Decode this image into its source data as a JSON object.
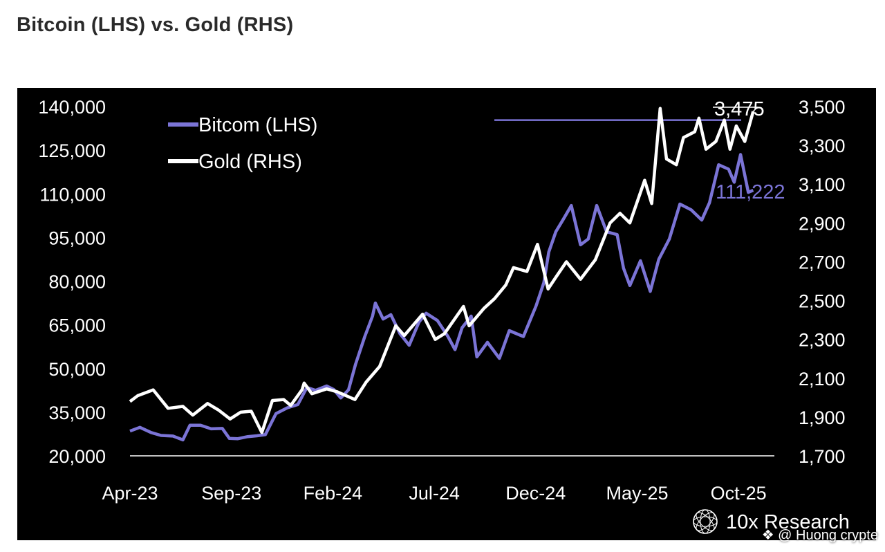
{
  "header": {
    "title": "Bitcoin (LHS) vs. Gold (RHS)"
  },
  "chart_data": {
    "type": "line",
    "title": "Bitcoin (LHS) vs. Gold (RHS)",
    "x_ticks": [
      "Apr-23",
      "Sep-23",
      "Feb-24",
      "Jul-24",
      "Dec-24",
      "May-25",
      "Oct-25"
    ],
    "y_left": {
      "ticks": [
        "140,000",
        "125,000",
        "110,000",
        "95,000",
        "80,000",
        "65,000",
        "50,000",
        "35,000",
        "20,000"
      ],
      "range": [
        20000,
        140000
      ]
    },
    "y_right": {
      "ticks": [
        "3,500",
        "3,300",
        "3,100",
        "2,900",
        "2,700",
        "2,500",
        "2,300",
        "2,100",
        "1,900",
        "1,700"
      ],
      "range": [
        1700,
        3500
      ]
    },
    "legend": {
      "position": "top-left"
    },
    "grid": false,
    "series": [
      {
        "name": "Bitcom (LHS)",
        "axis": "left",
        "color": "#7b74d6",
        "points": [
          [
            "2023-04-01",
            28500
          ],
          [
            "2023-04-15",
            29800
          ],
          [
            "2023-05-01",
            28000
          ],
          [
            "2023-05-15",
            27000
          ],
          [
            "2023-06-01",
            26800
          ],
          [
            "2023-06-15",
            25500
          ],
          [
            "2023-06-25",
            30500
          ],
          [
            "2023-07-10",
            30500
          ],
          [
            "2023-07-25",
            29300
          ],
          [
            "2023-08-10",
            29400
          ],
          [
            "2023-08-20",
            26000
          ],
          [
            "2023-09-01",
            25900
          ],
          [
            "2023-09-15",
            26600
          ],
          [
            "2023-09-28",
            26900
          ],
          [
            "2023-10-10",
            27300
          ],
          [
            "2023-10-25",
            34500
          ],
          [
            "2023-11-10",
            36500
          ],
          [
            "2023-11-25",
            37600
          ],
          [
            "2023-12-08",
            43500
          ],
          [
            "2023-12-20",
            42500
          ],
          [
            "2024-01-05",
            44000
          ],
          [
            "2024-01-15",
            42800
          ],
          [
            "2024-01-25",
            39900
          ],
          [
            "2024-02-05",
            42700
          ],
          [
            "2024-02-15",
            51500
          ],
          [
            "2024-02-28",
            61000
          ],
          [
            "2024-03-10",
            68000
          ],
          [
            "2024-03-14",
            72500
          ],
          [
            "2024-03-25",
            67000
          ],
          [
            "2024-04-05",
            68500
          ],
          [
            "2024-04-18",
            62000
          ],
          [
            "2024-05-01",
            58000
          ],
          [
            "2024-05-15",
            66000
          ],
          [
            "2024-05-25",
            69000
          ],
          [
            "2024-06-10",
            66500
          ],
          [
            "2024-06-25",
            61000
          ],
          [
            "2024-07-05",
            56500
          ],
          [
            "2024-07-15",
            64000
          ],
          [
            "2024-07-28",
            68000
          ],
          [
            "2024-08-05",
            54000
          ],
          [
            "2024-08-20",
            59000
          ],
          [
            "2024-09-06",
            53500
          ],
          [
            "2024-09-20",
            63000
          ],
          [
            "2024-10-10",
            61000
          ],
          [
            "2024-10-28",
            71500
          ],
          [
            "2024-11-08",
            79500
          ],
          [
            "2024-11-15",
            90000
          ],
          [
            "2024-11-25",
            97000
          ],
          [
            "2024-12-05",
            101000
          ],
          [
            "2024-12-17",
            106000
          ],
          [
            "2024-12-30",
            92500
          ],
          [
            "2025-01-10",
            94500
          ],
          [
            "2025-01-22",
            106000
          ],
          [
            "2025-02-05",
            97000
          ],
          [
            "2025-02-20",
            96000
          ],
          [
            "2025-03-01",
            84500
          ],
          [
            "2025-03-10",
            78500
          ],
          [
            "2025-03-25",
            87000
          ],
          [
            "2025-04-08",
            76500
          ],
          [
            "2025-04-20",
            87500
          ],
          [
            "2025-05-05",
            94500
          ],
          [
            "2025-05-20",
            106500
          ],
          [
            "2025-06-05",
            104500
          ],
          [
            "2025-06-20",
            101000
          ],
          [
            "2025-07-01",
            107000
          ],
          [
            "2025-07-14",
            120000
          ],
          [
            "2025-07-28",
            118500
          ],
          [
            "2025-08-05",
            114000
          ],
          [
            "2025-08-14",
            123500
          ],
          [
            "2025-08-25",
            110500
          ],
          [
            "2025-09-01",
            111222
          ]
        ],
        "end_label": "111,222"
      },
      {
        "name": "Gold (RHS)",
        "axis": "right",
        "color": "#ffffff",
        "points": [
          [
            "2023-04-01",
            1980
          ],
          [
            "2023-04-12",
            2010
          ],
          [
            "2023-05-04",
            2040
          ],
          [
            "2023-05-25",
            1945
          ],
          [
            "2023-06-15",
            1955
          ],
          [
            "2023-06-29",
            1910
          ],
          [
            "2023-07-20",
            1970
          ],
          [
            "2023-08-05",
            1935
          ],
          [
            "2023-08-21",
            1890
          ],
          [
            "2023-09-05",
            1925
          ],
          [
            "2023-09-20",
            1930
          ],
          [
            "2023-10-05",
            1820
          ],
          [
            "2023-10-20",
            1985
          ],
          [
            "2023-11-05",
            1990
          ],
          [
            "2023-11-15",
            1960
          ],
          [
            "2023-12-01",
            2040
          ],
          [
            "2023-12-04",
            2075
          ],
          [
            "2023-12-15",
            2020
          ],
          [
            "2024-01-05",
            2045
          ],
          [
            "2024-01-20",
            2030
          ],
          [
            "2024-02-14",
            1990
          ],
          [
            "2024-03-01",
            2080
          ],
          [
            "2024-03-20",
            2160
          ],
          [
            "2024-04-12",
            2370
          ],
          [
            "2024-04-24",
            2320
          ],
          [
            "2024-05-20",
            2430
          ],
          [
            "2024-06-07",
            2300
          ],
          [
            "2024-06-20",
            2330
          ],
          [
            "2024-07-17",
            2470
          ],
          [
            "2024-07-25",
            2370
          ],
          [
            "2024-08-15",
            2460
          ],
          [
            "2024-08-30",
            2510
          ],
          [
            "2024-09-15",
            2580
          ],
          [
            "2024-09-26",
            2670
          ],
          [
            "2024-10-15",
            2650
          ],
          [
            "2024-10-30",
            2790
          ],
          [
            "2024-11-14",
            2560
          ],
          [
            "2024-11-25",
            2620
          ],
          [
            "2024-12-10",
            2700
          ],
          [
            "2024-12-30",
            2610
          ],
          [
            "2025-01-20",
            2710
          ],
          [
            "2025-02-10",
            2900
          ],
          [
            "2025-02-24",
            2950
          ],
          [
            "2025-03-10",
            2900
          ],
          [
            "2025-03-31",
            3120
          ],
          [
            "2025-04-10",
            3000
          ],
          [
            "2025-04-22",
            3490
          ],
          [
            "2025-05-01",
            3230
          ],
          [
            "2025-05-15",
            3200
          ],
          [
            "2025-05-25",
            3340
          ],
          [
            "2025-06-10",
            3370
          ],
          [
            "2025-06-16",
            3440
          ],
          [
            "2025-06-26",
            3280
          ],
          [
            "2025-07-10",
            3320
          ],
          [
            "2025-07-22",
            3430
          ],
          [
            "2025-07-30",
            3280
          ],
          [
            "2025-08-08",
            3400
          ],
          [
            "2025-08-20",
            3320
          ],
          [
            "2025-09-01",
            3475
          ]
        ],
        "end_label": "3,475",
        "reference_line": 3430
      }
    ]
  }
}
